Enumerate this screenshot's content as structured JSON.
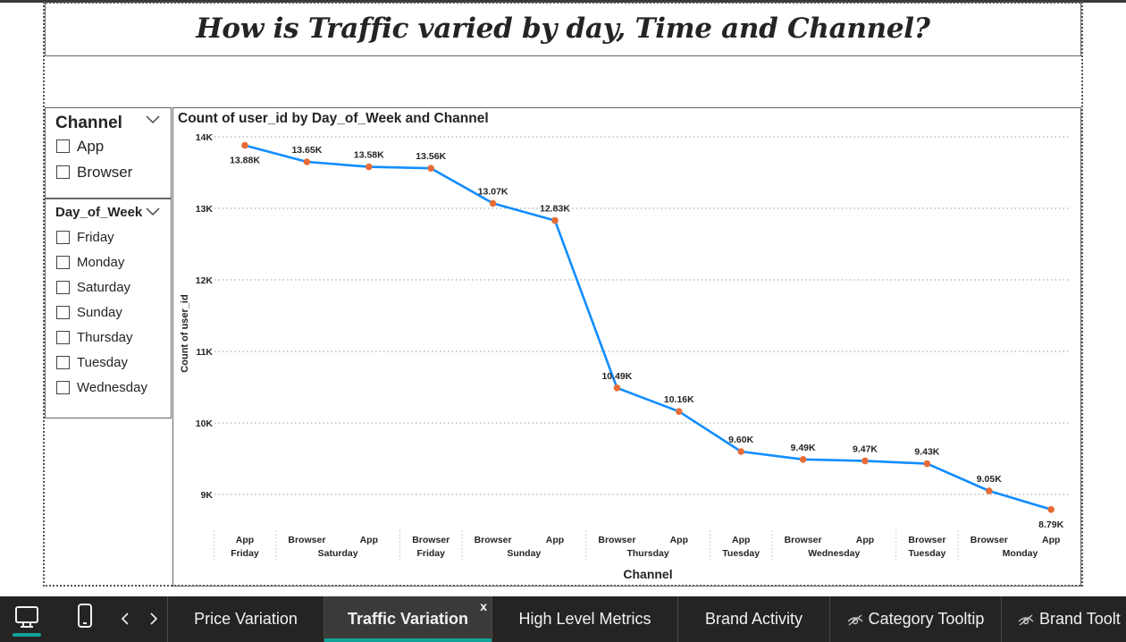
{
  "report": {
    "title": "How is Traffic varied by day, Time and Channel?"
  },
  "slicers": {
    "channel": {
      "title": "Channel",
      "options": [
        "App",
        "Browser"
      ]
    },
    "day_of_week": {
      "title": "Day_of_Week",
      "options": [
        "Friday",
        "Monday",
        "Saturday",
        "Sunday",
        "Thursday",
        "Tuesday",
        "Wednesday"
      ]
    }
  },
  "chart_data": {
    "type": "line",
    "title": "Count of user_id by Day_of_Week and Channel",
    "xlabel": "Channel",
    "ylabel": "Count of user_id",
    "ylim": [
      8500,
      14000
    ],
    "y_ticks": [
      9000,
      10000,
      11000,
      12000,
      13000,
      14000
    ],
    "y_tick_labels": [
      "9K",
      "10K",
      "11K",
      "12K",
      "13K",
      "14K"
    ],
    "grid": true,
    "line_color": "#118dff",
    "marker_color": "#e66c37",
    "points": [
      {
        "channel": "App",
        "day": "Friday",
        "value": 13880,
        "label": "13.88K"
      },
      {
        "channel": "Browser",
        "day": "Saturday",
        "value": 13650,
        "label": "13.65K"
      },
      {
        "channel": "App",
        "day": "Saturday",
        "value": 13580,
        "label": "13.58K"
      },
      {
        "channel": "Browser",
        "day": "Friday",
        "value": 13560,
        "label": "13.56K"
      },
      {
        "channel": "Browser",
        "day": "Sunday",
        "value": 13070,
        "label": "13.07K"
      },
      {
        "channel": "App",
        "day": "Sunday",
        "value": 12830,
        "label": "12.83K"
      },
      {
        "channel": "Browser",
        "day": "Thursday",
        "value": 10490,
        "label": "10.49K"
      },
      {
        "channel": "App",
        "day": "Thursday",
        "value": 10160,
        "label": "10.16K"
      },
      {
        "channel": "App",
        "day": "Tuesday",
        "value": 9600,
        "label": "9.60K"
      },
      {
        "channel": "Browser",
        "day": "Wednesday",
        "value": 9490,
        "label": "9.49K"
      },
      {
        "channel": "App",
        "day": "Wednesday",
        "value": 9470,
        "label": "9.47K"
      },
      {
        "channel": "Browser",
        "day": "Tuesday",
        "value": 9430,
        "label": "9.43K"
      },
      {
        "channel": "Browser",
        "day": "Monday",
        "value": 9050,
        "label": "9.05K"
      },
      {
        "channel": "App",
        "day": "Monday",
        "value": 8790,
        "label": "8.79K"
      }
    ]
  },
  "taskbar": {
    "tabs": [
      {
        "label": "Price Variation",
        "active": false,
        "hidden": false
      },
      {
        "label": "Traffic Variation",
        "active": true,
        "hidden": false
      },
      {
        "label": "High Level Metrics",
        "active": false,
        "hidden": false
      },
      {
        "label": "Brand Activity",
        "active": false,
        "hidden": false
      },
      {
        "label": "Category Tooltip",
        "active": false,
        "hidden": true
      },
      {
        "label": "Brand Toolt",
        "active": false,
        "hidden": true
      }
    ],
    "close_label": "x",
    "icons": [
      "desktop-view-icon",
      "mobile-view-icon",
      "prev-page-icon",
      "next-page-icon"
    ],
    "accent_color": "#11a39a"
  }
}
